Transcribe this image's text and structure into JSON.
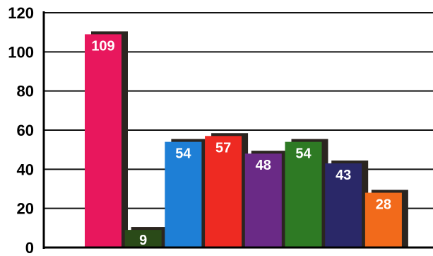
{
  "chart_data": {
    "type": "bar",
    "title": "",
    "xlabel": "",
    "ylabel": "",
    "ylim": [
      0,
      120
    ],
    "yticks": [
      0,
      20,
      40,
      60,
      80,
      100,
      120
    ],
    "grid": true,
    "legend": "none",
    "values": [
      109,
      9,
      54,
      57,
      48,
      54,
      43,
      28
    ],
    "bar_colors": [
      "#e8175d",
      "#2a4a18",
      "#1e7fd6",
      "#ee2a22",
      "#6a2a86",
      "#2e7a24",
      "#2a2868",
      "#f26a1b"
    ],
    "label_colors": [
      "#ffffff",
      "#ffffff",
      "#ffffff",
      "#ffffff",
      "#ffffff",
      "#ffffff",
      "#ffffff",
      "#ffffff"
    ],
    "shadow_color": "#2b2520",
    "gridline_color": "#111111"
  }
}
